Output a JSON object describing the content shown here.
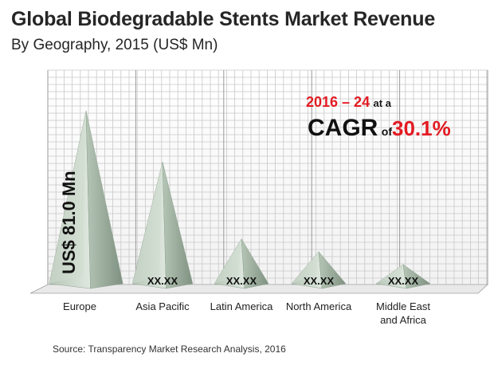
{
  "header": {
    "title": "Global Biodegradable Stents Market Revenue",
    "subtitle": "By Geography, 2015 (US$ Mn)"
  },
  "callout": {
    "period": "2016 – 24",
    "at_a": "at a",
    "cagr_word": "CAGR",
    "of_word": "of",
    "cagr_value": "30.1%"
  },
  "source": "Source: Transparency Market Research Analysis, 2016",
  "colors": {
    "pyramid_light": "#dfe8df",
    "pyramid_mid": "#b5c5b6",
    "pyramid_dark": "#7f9181",
    "grid": "#c8c8c8",
    "accent": "#e31b23"
  },
  "chart_data": {
    "type": "bar",
    "shape": "pyramid",
    "title": "Global Biodegradable Stents Market Revenue",
    "subtitle": "By Geography, 2015 (US$ Mn)",
    "categories": [
      "Europe",
      "Asia Pacific",
      "Latin America",
      "North America",
      "Middle East and Africa"
    ],
    "category_lines": [
      [
        "Europe"
      ],
      [
        "Asia Pacific"
      ],
      [
        "Latin America"
      ],
      [
        "North America"
      ],
      [
        "Middle East",
        "and Africa"
      ]
    ],
    "values": [
      81.0,
      57.0,
      21.0,
      15.0,
      9.0
    ],
    "data_labels": [
      "US$ 81.0 Mn",
      "XX.XX",
      "XX.XX",
      "XX.XX",
      "XX.XX"
    ],
    "ylim": [
      0,
      100
    ],
    "grid": true,
    "legend": "none"
  }
}
